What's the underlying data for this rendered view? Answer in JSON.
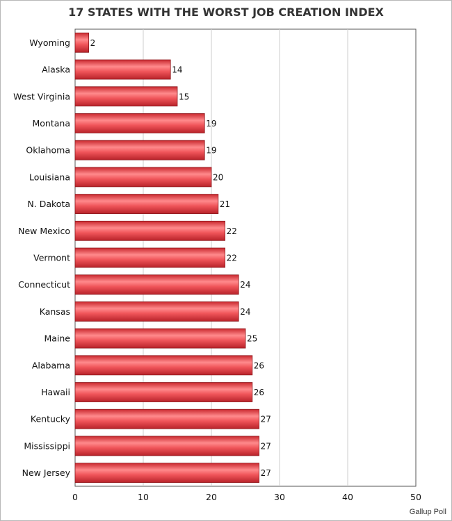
{
  "chart_data": {
    "type": "bar",
    "orientation": "horizontal",
    "title": "17 STATES WITH THE WORST JOB CREATION INDEX",
    "categories": [
      "Wyoming",
      "Alaska",
      "West Virginia",
      "Montana",
      "Oklahoma",
      "Louisiana",
      "N. Dakota",
      "New Mexico",
      "Vermont",
      "Connecticut",
      "Kansas",
      "Maine",
      "Alabama",
      "Hawaii",
      "Kentucky",
      "Mississippi",
      "New Jersey"
    ],
    "values": [
      2,
      14,
      15,
      19,
      19,
      20,
      21,
      22,
      22,
      24,
      24,
      25,
      26,
      26,
      27,
      27,
      27
    ],
    "xlim": [
      0,
      50
    ],
    "xticks": [
      0,
      10,
      20,
      30,
      40,
      50
    ],
    "grid": true,
    "bar_color": "#e8474c",
    "source": "Gallup Poll"
  }
}
